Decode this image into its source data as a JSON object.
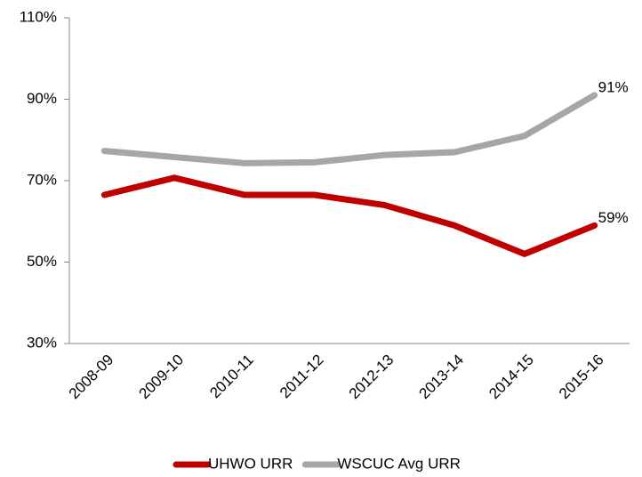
{
  "chart_data": {
    "type": "line",
    "categories": [
      "2008-09",
      "2009-10",
      "2010-11",
      "2011-12",
      "2012-13",
      "2013-14",
      "2014-15",
      "2015-16"
    ],
    "series": [
      {
        "name": "UHWO URR",
        "color": "#c00000",
        "values": [
          66.5,
          70.7,
          66.5,
          66.5,
          64,
          59,
          52,
          59
        ],
        "value_labels": [
          null,
          null,
          null,
          null,
          null,
          null,
          null,
          "59%"
        ]
      },
      {
        "name": "WSCUC Avg URR",
        "color": "#a6a6a6",
        "values": [
          77.3,
          75.8,
          74.3,
          74.5,
          76.3,
          77,
          81,
          91
        ],
        "value_labels": [
          null,
          null,
          null,
          null,
          null,
          null,
          null,
          "91%"
        ]
      }
    ],
    "ylim": [
      30,
      110
    ],
    "yticks": [
      {
        "value": 30,
        "label": "30%"
      },
      {
        "value": 50,
        "label": "50%"
      },
      {
        "value": 70,
        "label": "70%"
      },
      {
        "value": 90,
        "label": "90%"
      },
      {
        "value": 110,
        "label": "110%"
      }
    ],
    "grid": false,
    "legend": "bottom"
  }
}
